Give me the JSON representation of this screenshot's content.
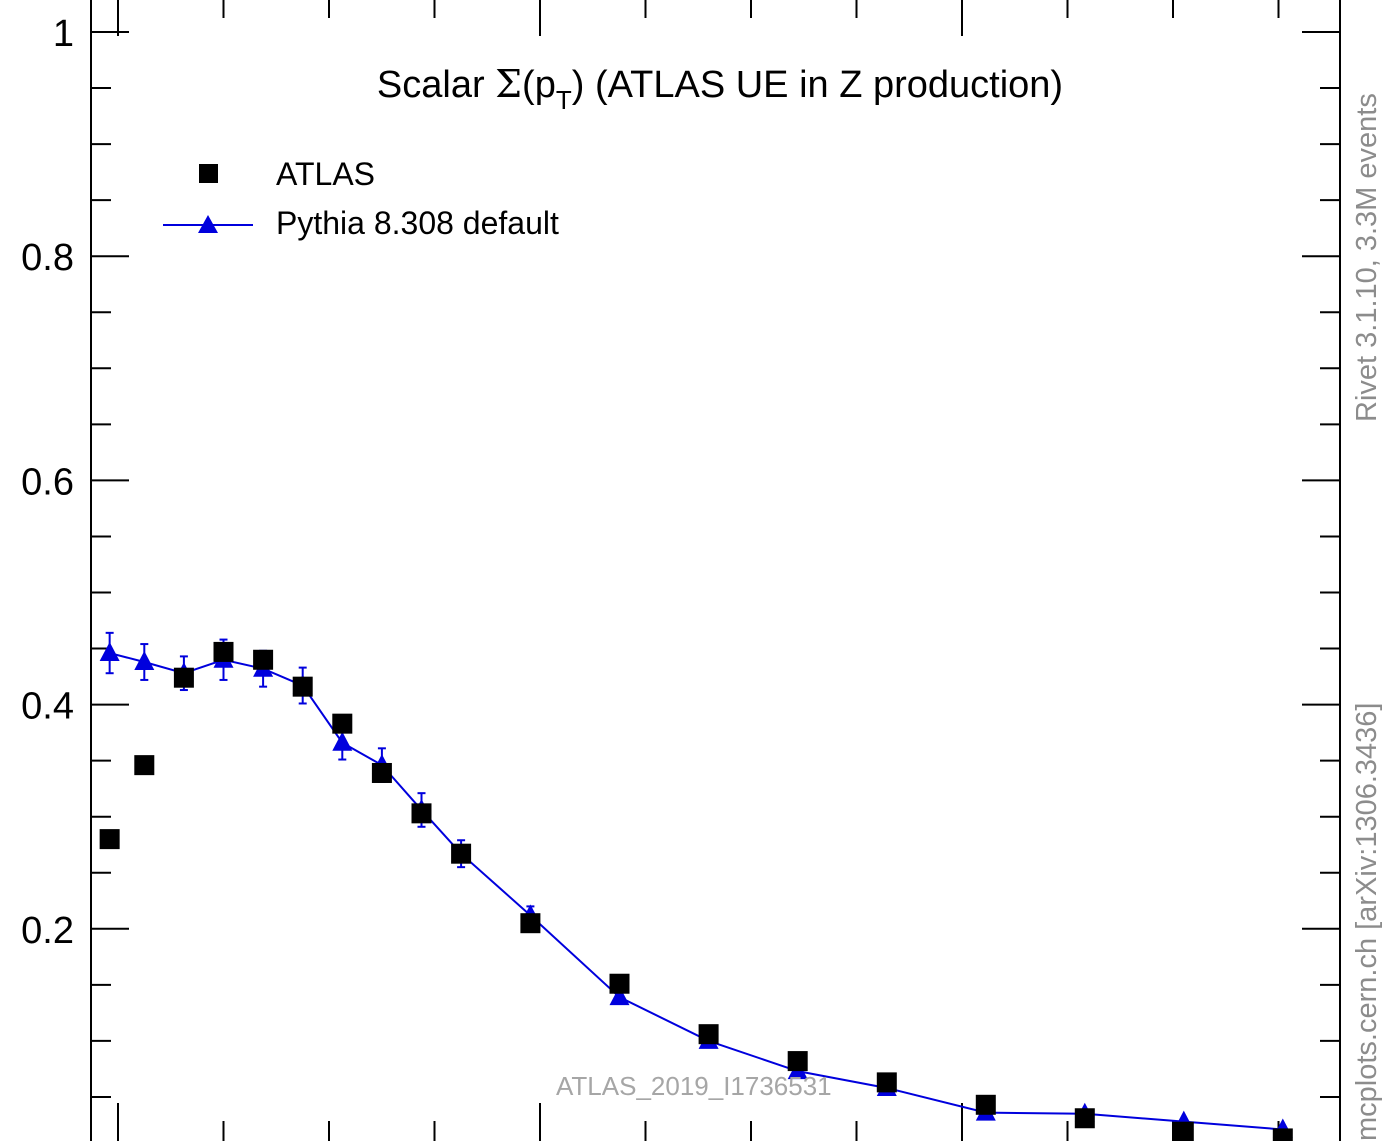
{
  "chart_data": {
    "type": "scatter",
    "title_main": "Scalar ",
    "title_sigma": "Σ",
    "title_open": "(p",
    "title_sub": "T",
    "title_rest": ") (ATLAS UE in Z production)",
    "y_ticks": [
      {
        "value": 1.0,
        "label": "1"
      },
      {
        "value": 0.8,
        "label": "0.8"
      },
      {
        "value": 0.6,
        "label": "0.6"
      },
      {
        "value": 0.4,
        "label": "0.4"
      },
      {
        "value": 0.2,
        "label": "0.2"
      }
    ],
    "ylim": [
      0,
      1.02
    ],
    "xlim": [
      0,
      13
    ],
    "grid": false,
    "legend_position": "top-left",
    "series": [
      {
        "name": "ATLAS",
        "marker": "square",
        "color": "#000000",
        "x": [
          0.35,
          0.7,
          1.1,
          1.5,
          1.9,
          2.3,
          2.7,
          3.1,
          3.5,
          3.9,
          4.6,
          5.5,
          6.4,
          7.3,
          8.2,
          9.2,
          10.2,
          11.2,
          12.2
        ],
        "y": [
          0.28,
          0.346,
          0.424,
          0.447,
          0.44,
          0.416,
          0.383,
          0.339,
          0.303,
          0.267,
          0.205,
          0.151,
          0.106,
          0.082,
          0.063,
          0.043,
          0.031,
          0.019,
          0.013
        ]
      },
      {
        "name": "Pythia 8.308 default",
        "marker": "triangle",
        "color": "#0000dd",
        "x": [
          0.35,
          0.7,
          1.1,
          1.5,
          1.9,
          2.3,
          2.7,
          3.1,
          3.5,
          3.9,
          4.6,
          5.5,
          6.4,
          7.3,
          8.2,
          9.2,
          10.2,
          11.2,
          12.2
        ],
        "y": [
          0.446,
          0.438,
          0.428,
          0.44,
          0.432,
          0.417,
          0.366,
          0.346,
          0.306,
          0.267,
          0.212,
          0.139,
          0.1,
          0.073,
          0.058,
          0.036,
          0.035,
          0.028,
          0.021
        ],
        "err": [
          0.018,
          0.016,
          0.015,
          0.018,
          0.016,
          0.016,
          0.015,
          0.015,
          0.015,
          0.012,
          0.008,
          0.006,
          0.004,
          0.004,
          0.004,
          0.003,
          0.003,
          0.003,
          0.003
        ]
      }
    ]
  },
  "side_text_top": "Rivet 3.1.10,  3.3M events",
  "side_text_bottom": "mcplots.cern.ch [arXiv:1306.3436]",
  "watermark": "ATLAS_2019_I1736531",
  "colors": {
    "data": "#000000",
    "mc": "#0000dd",
    "side_text": "#8c8c8c",
    "watermark": "#a6a6a6"
  }
}
